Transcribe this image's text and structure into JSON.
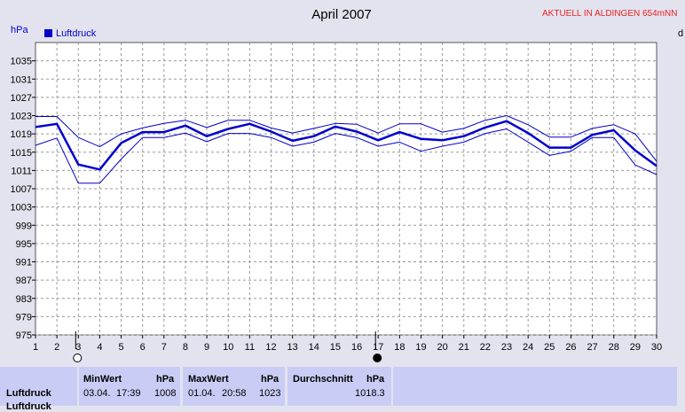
{
  "header": {
    "title": "April 2007",
    "banner": "AKTUELL IN ALDINGEN 654mNN",
    "unit_left": "hPa",
    "unit_right_fragment": "d"
  },
  "colors": {
    "background": "#e3e3ef",
    "plot_bg": "#ffffff",
    "series": "#0000cc",
    "banner": "#ee2222",
    "table_bg": "#c9cdf5"
  },
  "chart_data": {
    "type": "line",
    "title": "April 2007",
    "ylabel": "hPa",
    "ylim": [
      975,
      1039
    ],
    "yticks": [
      975,
      979,
      983,
      987,
      991,
      995,
      999,
      1003,
      1007,
      1011,
      1015,
      1019,
      1023,
      1027,
      1031,
      1035
    ],
    "x": [
      1,
      2,
      3,
      4,
      5,
      6,
      7,
      8,
      9,
      10,
      11,
      12,
      13,
      14,
      15,
      16,
      17,
      18,
      19,
      20,
      21,
      22,
      23,
      24,
      25,
      26,
      27,
      28,
      29,
      30
    ],
    "xlim": [
      1,
      30
    ],
    "grid": true,
    "legend": "top-left",
    "moon_markers": [
      {
        "x": 3,
        "phase": "new-moon-outline"
      },
      {
        "x": 17,
        "phase": "full-moon-filled"
      }
    ],
    "series": [
      {
        "name": "Luftdruck",
        "role": "mean",
        "values": [
          1020.5,
          1021.2,
          1012.3,
          1011.2,
          1017,
          1019.4,
          1019.4,
          1020.8,
          1018.5,
          1020.1,
          1021.2,
          1019.5,
          1017.5,
          1018.5,
          1020.6,
          1019.5,
          1017.6,
          1019.4,
          1017.9,
          1017.6,
          1018.5,
          1020.4,
          1021.8,
          1019.2,
          1016,
          1016,
          1018.8,
          1019.8,
          1015.4,
          1012
        ],
        "width": 2.5
      },
      {
        "role": "max",
        "values": [
          1022.8,
          1022.8,
          1018.2,
          1016.2,
          1019,
          1020.3,
          1021.3,
          1022,
          1020.4,
          1022,
          1022,
          1020.3,
          1019.2,
          1020.2,
          1021.3,
          1021.1,
          1019.2,
          1021.2,
          1021.2,
          1019.4,
          1020.2,
          1022,
          1023,
          1021,
          1018.3,
          1018.3,
          1020.2,
          1021,
          1019,
          1013
        ],
        "width": 1
      },
      {
        "role": "min",
        "values": [
          1016.5,
          1018.1,
          1008.2,
          1008.2,
          1013.5,
          1018.2,
          1018.2,
          1019.2,
          1017.3,
          1019.1,
          1019.1,
          1018.2,
          1016.3,
          1017.2,
          1019.1,
          1018.2,
          1016.3,
          1017.2,
          1015.2,
          1016.3,
          1017.2,
          1019.1,
          1020.1,
          1017.2,
          1014.3,
          1015.2,
          1018.2,
          1018.2,
          1012.2,
          1010.1
        ],
        "width": 1
      }
    ]
  },
  "stats": {
    "row_label": "Luftdruck",
    "row_label_next": "Luftdruck (next row, cut off)",
    "min_header": "MinWert",
    "min_unit": "hPa",
    "min_date": "03.04.",
    "min_time": "17:39",
    "min_value": "1008",
    "max_header": "MaxWert",
    "max_unit": "hPa",
    "max_date": "01.04.",
    "max_time": "20:58",
    "max_value": "1023",
    "avg_header": "Durchschnitt",
    "avg_unit": "hPa",
    "avg_value": "1018.3"
  }
}
